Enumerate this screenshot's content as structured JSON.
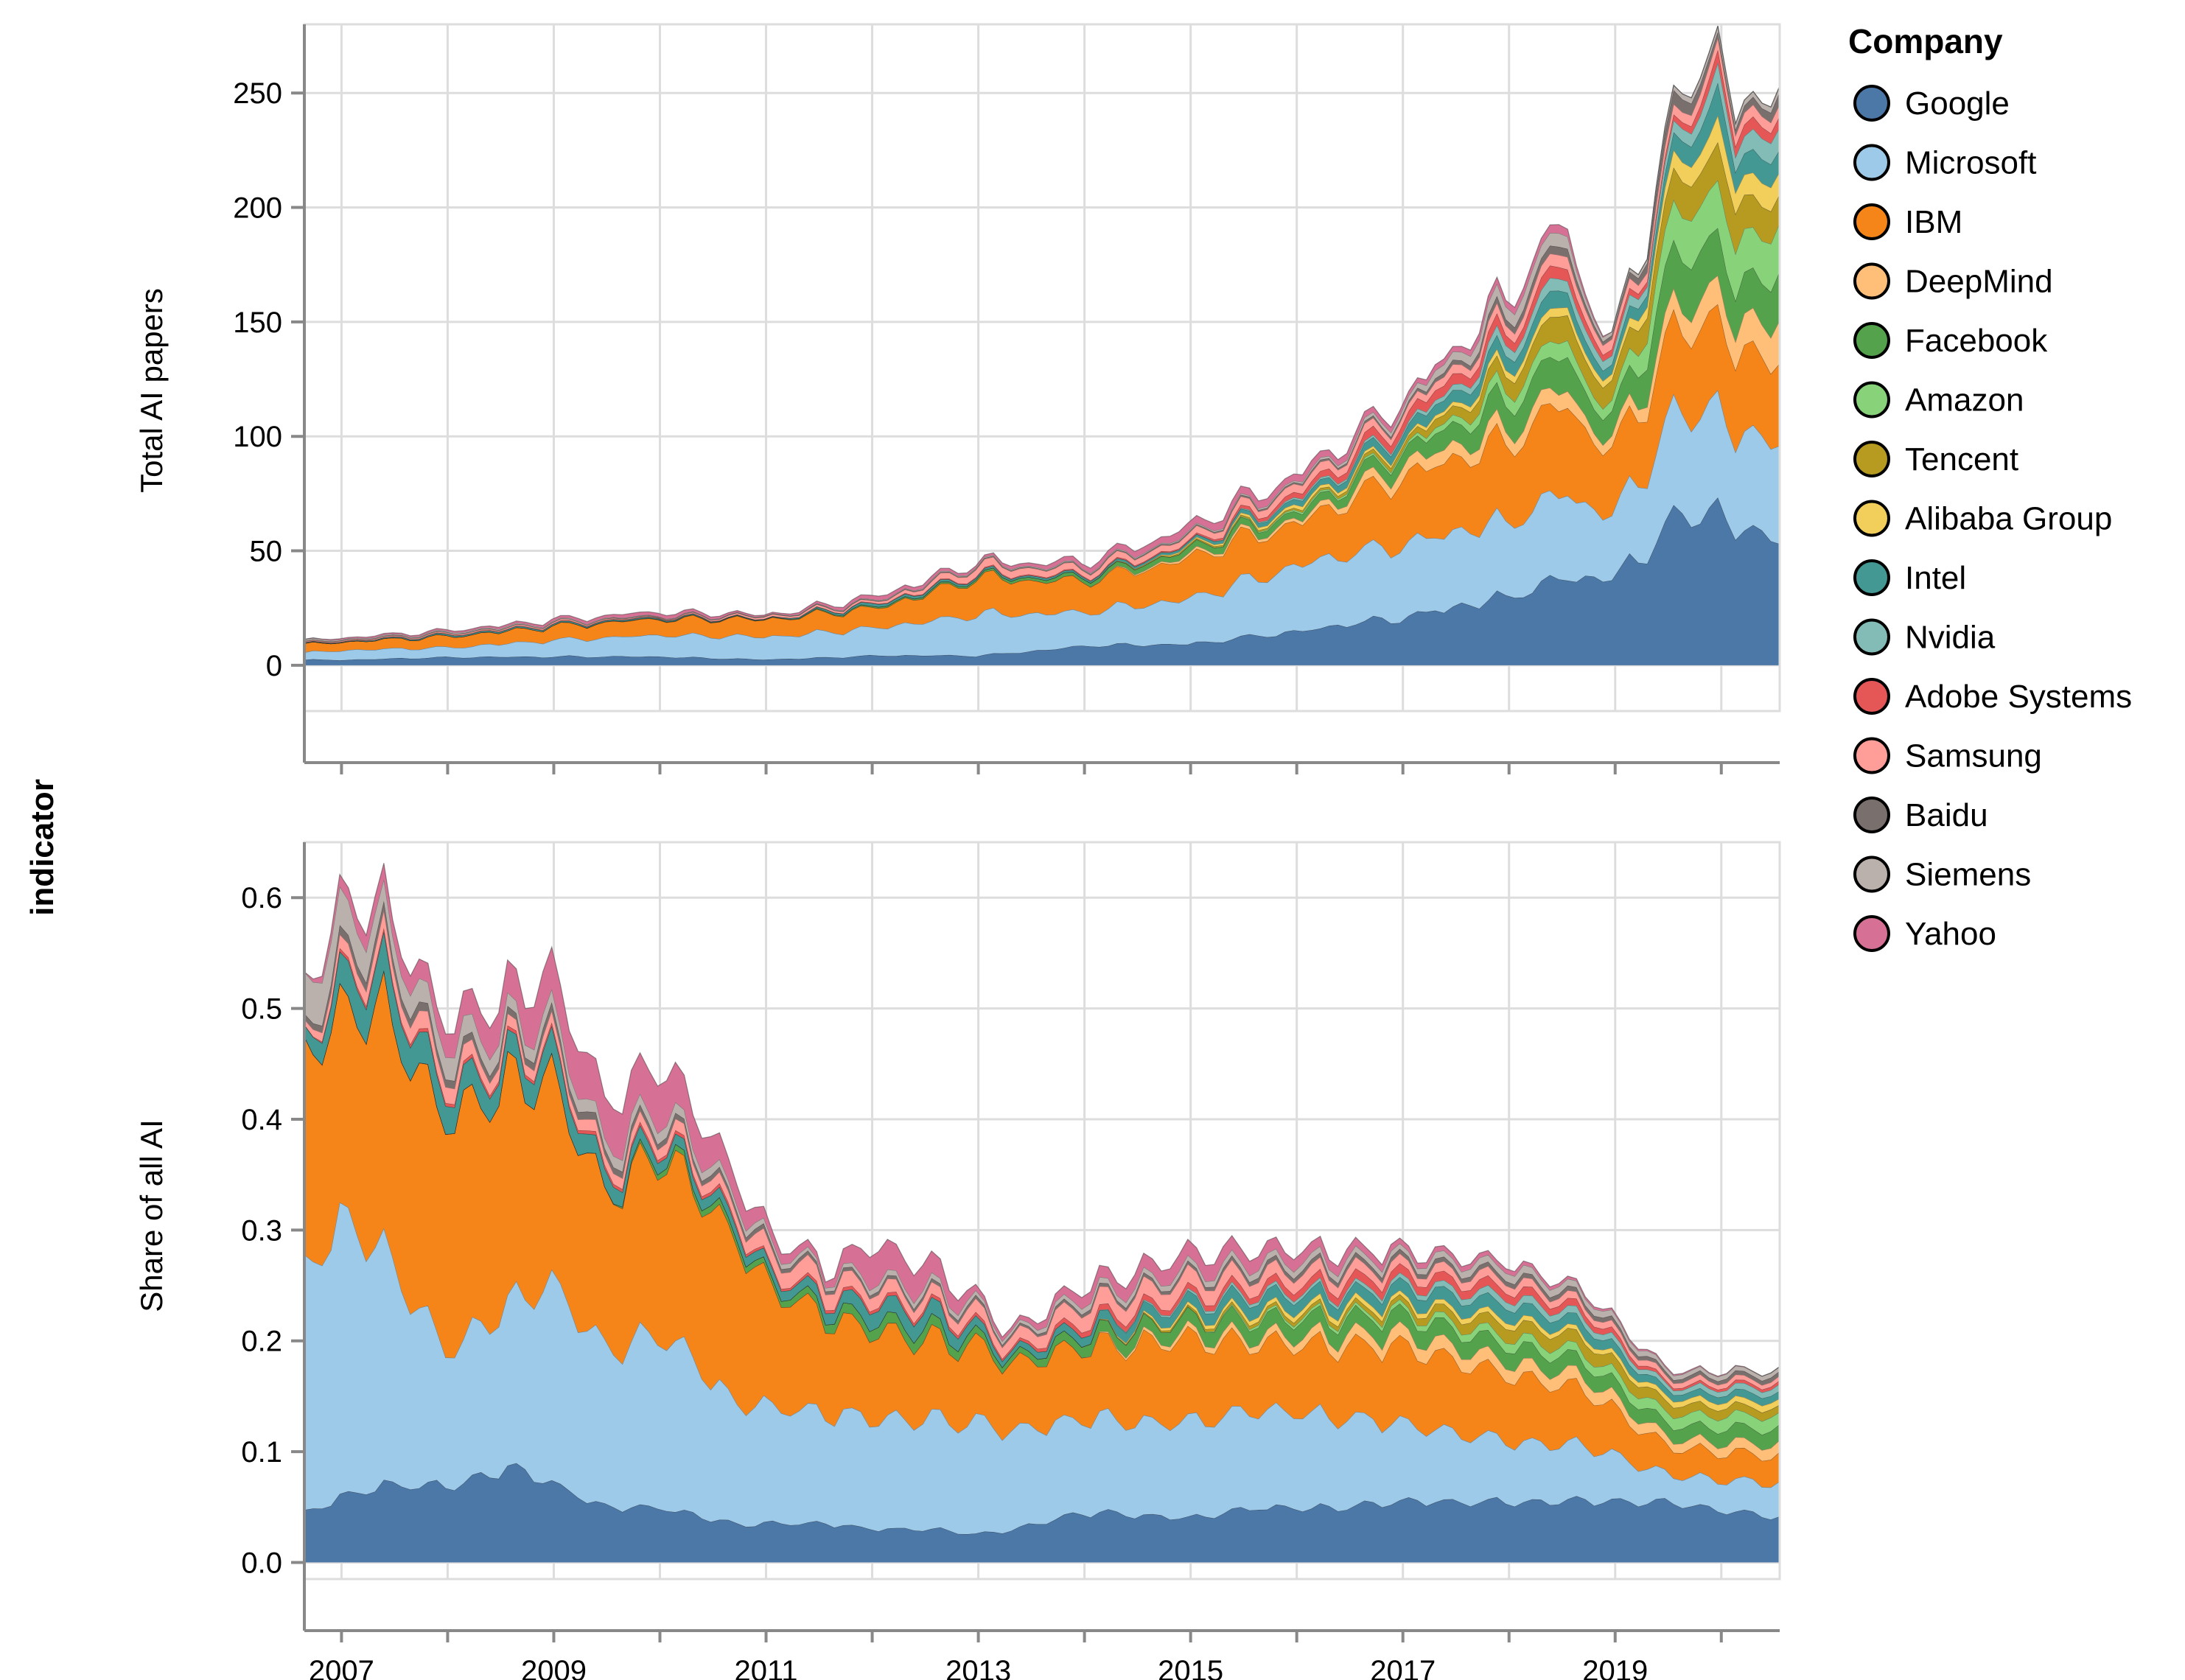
{
  "chart_data": {
    "type": "area",
    "stacked": true,
    "row_title": "indicator",
    "legend": {
      "title": "Company",
      "placement": "right",
      "items": [
        {
          "name": "Google",
          "color": "#4c78a8"
        },
        {
          "name": "Microsoft",
          "color": "#9ecae9"
        },
        {
          "name": "IBM",
          "color": "#f58518"
        },
        {
          "name": "DeepMind",
          "color": "#ffbf79"
        },
        {
          "name": "Facebook",
          "color": "#54a24b"
        },
        {
          "name": "Amazon",
          "color": "#88d27a"
        },
        {
          "name": "Tencent",
          "color": "#b79a20"
        },
        {
          "name": "Alibaba Group",
          "color": "#f2cf5b"
        },
        {
          "name": "Intel",
          "color": "#439894"
        },
        {
          "name": "Nvidia",
          "color": "#83bcb6"
        },
        {
          "name": "Adobe Systems",
          "color": "#e45756"
        },
        {
          "name": "Samsung",
          "color": "#ff9d98"
        },
        {
          "name": "Baidu",
          "color": "#79706e"
        },
        {
          "name": "Siemens",
          "color": "#bab0ac"
        },
        {
          "name": "Yahoo",
          "color": "#d67195"
        }
      ]
    },
    "x_axis": {
      "range": [
        2006.65,
        2020.55
      ],
      "ticks": [
        2007,
        2009,
        2011,
        2013,
        2015,
        2017,
        2019
      ],
      "tick_labels": [
        "2007",
        "2009",
        "2011",
        "2013",
        "2015",
        "2017",
        "2019"
      ]
    },
    "panels": [
      {
        "name": "total",
        "ylabel": "Total AI papers",
        "ylim": [
          -20,
          280
        ],
        "yticks": [
          0,
          50,
          100,
          150,
          200,
          250
        ],
        "ytick_labels": [
          "0",
          "50",
          "100",
          "150",
          "200",
          "250"
        ],
        "anchors": [
          {
            "year": 2006.65,
            "total": 11,
            "shares": [
              0.22,
              0.28,
              0.35,
              0,
              0,
              0,
              0,
              0,
              0.02,
              0,
              0.01,
              0.03,
              0.03,
              0.06,
              0
            ]
          },
          {
            "year": 2007.0,
            "total": 12,
            "shares": [
              0.2,
              0.35,
              0.3,
              0,
              0,
              0,
              0,
              0,
              0.02,
              0,
              0.01,
              0.03,
              0.02,
              0.03,
              0.04
            ]
          },
          {
            "year": 2008.0,
            "total": 15,
            "shares": [
              0.23,
              0.28,
              0.32,
              0,
              0,
              0,
              0,
              0,
              0.04,
              0,
              0.01,
              0.03,
              0.02,
              0.03,
              0.04
            ]
          },
          {
            "year": 2009.0,
            "total": 19,
            "shares": [
              0.2,
              0.38,
              0.32,
              0,
              0,
              0,
              0,
              0,
              0.03,
              0,
              0.01,
              0.03,
              0.01,
              0.02,
              0.05
            ]
          },
          {
            "year": 2010.0,
            "total": 22,
            "shares": [
              0.17,
              0.43,
              0.32,
              0,
              0.01,
              0,
              0,
              0,
              0.02,
              0,
              0.01,
              0.01,
              0.01,
              0.01,
              0.07
            ]
          },
          {
            "year": 2011.0,
            "total": 21,
            "shares": [
              0.12,
              0.47,
              0.36,
              0,
              0.01,
              0,
              0,
              0,
              0.01,
              0,
              0,
              0.04,
              0.01,
              0.01,
              0.02
            ]
          },
          {
            "year": 2012.0,
            "total": 28,
            "shares": [
              0.15,
              0.42,
              0.3,
              0,
              0.02,
              0,
              0,
              0,
              0.04,
              0,
              0.01,
              0.03,
              0.01,
              0.01,
              0.06
            ]
          },
          {
            "year": 2013.0,
            "total": 42,
            "shares": [
              0.1,
              0.43,
              0.38,
              0,
              0.02,
              0,
              0,
              0,
              0.02,
              0,
              0.01,
              0.08,
              0.01,
              0.01,
              0.02
            ]
          },
          {
            "year": 2014.0,
            "total": 42,
            "shares": [
              0.2,
              0.35,
              0.32,
              0,
              0.04,
              0,
              0,
              0,
              0.02,
              0,
              0.01,
              0.06,
              0.01,
              0.01,
              0.05
            ]
          },
          {
            "year": 2015.0,
            "total": 55,
            "shares": [
              0.17,
              0.36,
              0.32,
              0.02,
              0.05,
              0,
              0.01,
              0.01,
              0.02,
              0,
              0.01,
              0.05,
              0.01,
              0.01,
              0.06
            ]
          },
          {
            "year": 2016.0,
            "total": 75,
            "shares": [
              0.2,
              0.38,
              0.25,
              0.02,
              0.04,
              0.01,
              0.01,
              0.02,
              0.03,
              0.01,
              0.03,
              0.05,
              0.01,
              0.01,
              0.04
            ]
          },
          {
            "year": 2017.0,
            "total": 105,
            "shares": [
              0.2,
              0.3,
              0.28,
              0.05,
              0.06,
              0.01,
              0.02,
              0.01,
              0.04,
              0.01,
              0.04,
              0.03,
              0.01,
              0.02,
              0.02
            ]
          },
          {
            "year": 2018.0,
            "total": 150,
            "shares": [
              0.2,
              0.22,
              0.23,
              0.04,
              0.08,
              0.04,
              0.05,
              0.02,
              0.04,
              0.03,
              0.03,
              0.03,
              0.02,
              0.04,
              0.02
            ]
          },
          {
            "year": 2018.5,
            "total": 180,
            "shares": [
              0.21,
              0.21,
              0.22,
              0.04,
              0.08,
              0.04,
              0.06,
              0.02,
              0.04,
              0.03,
              0.03,
              0.03,
              0.02,
              0.03,
              0.02
            ]
          },
          {
            "year": 2018.95,
            "total": 135,
            "shares": [
              0.27,
              0.2,
              0.2,
              0.03,
              0.07,
              0.03,
              0.06,
              0.02,
              0.03,
              0.03,
              0.02,
              0.03,
              0.01,
              0.01,
              0
            ]
          },
          {
            "year": 2019.5,
            "total": 215,
            "shares": [
              0.28,
              0.2,
              0.16,
              0.04,
              0.1,
              0.08,
              0.06,
              0.03,
              0.03,
              0.02,
              0.01,
              0.02,
              0.03,
              0.01,
              0
            ]
          },
          {
            "year": 2019.95,
            "total": 278,
            "shares": [
              0.25,
              0.17,
              0.14,
              0.05,
              0.08,
              0.08,
              0.06,
              0.04,
              0.05,
              0.03,
              0.02,
              0.02,
              0.01,
              0.01,
              0
            ]
          },
          {
            "year": 2020.15,
            "total": 230,
            "shares": [
              0.25,
              0.17,
              0.15,
              0.05,
              0.07,
              0.08,
              0.07,
              0.04,
              0.04,
              0.03,
              0.02,
              0.02,
              0.01,
              0.01,
              0
            ]
          },
          {
            "year": 2020.55,
            "total": 262,
            "shares": [
              0.22,
              0.17,
              0.14,
              0.07,
              0.08,
              0.08,
              0.05,
              0.04,
              0.04,
              0.04,
              0.02,
              0.02,
              0.02,
              0.01,
              0
            ]
          }
        ]
      },
      {
        "name": "share",
        "ylabel": "Share of all AI",
        "ylim": [
          -0.015,
          0.65
        ],
        "yticks": [
          0.0,
          0.1,
          0.2,
          0.3,
          0.4,
          0.5,
          0.6
        ],
        "ytick_labels": [
          "0.0",
          "0.1",
          "0.2",
          "0.3",
          "0.4",
          "0.5",
          "0.6"
        ],
        "anchors": [
          {
            "year": 2006.65,
            "values": [
              0.045,
              0.215,
              0.195,
              0,
              0,
              0,
              0,
              0,
              0.01,
              0,
              0,
              0.005,
              0.005,
              0.04,
              0
            ]
          },
          {
            "year": 2007.0,
            "values": [
              0.06,
              0.25,
              0.19,
              0,
              0,
              0,
              0,
              0,
              0.03,
              0,
              0.003,
              0.012,
              0.008,
              0.035,
              0.012
            ]
          },
          {
            "year": 2007.4,
            "values": [
              0.07,
              0.21,
              0.22,
              0,
              0,
              0,
              0,
              0,
              0.035,
              0,
              0.003,
              0.015,
              0.008,
              0.02,
              0.015
            ]
          },
          {
            "year": 2008.0,
            "values": [
              0.07,
              0.12,
              0.21,
              0,
              0,
              0,
              0,
              0,
              0.025,
              0,
              0.003,
              0.015,
              0.007,
              0.02,
              0.02
            ]
          },
          {
            "year": 2008.6,
            "values": [
              0.085,
              0.15,
              0.2,
              0,
              0,
              0,
              0,
              0,
              0.02,
              0,
              0.003,
              0.01,
              0.006,
              0.012,
              0.03
            ]
          },
          {
            "year": 2009.0,
            "values": [
              0.07,
              0.18,
              0.18,
              0,
              0,
              0,
              0,
              0,
              0.025,
              0,
              0.003,
              0.01,
              0.007,
              0.012,
              0.04
            ]
          },
          {
            "year": 2009.5,
            "values": [
              0.05,
              0.14,
              0.14,
              0,
              0,
              0,
              0,
              0,
              0.015,
              0,
              0.003,
              0.01,
              0.006,
              0.01,
              0.04
            ]
          },
          {
            "year": 2010.0,
            "values": [
              0.05,
              0.16,
              0.16,
              0,
              0.005,
              0,
              0,
              0,
              0.01,
              0,
              0.003,
              0.01,
              0.005,
              0.01,
              0.04
            ]
          },
          {
            "year": 2010.7,
            "values": [
              0.035,
              0.11,
              0.15,
              0,
              0.006,
              0,
              0,
              0,
              0.01,
              0,
              0.003,
              0.01,
              0.004,
              0.006,
              0.02
            ]
          },
          {
            "year": 2011.0,
            "values": [
              0.035,
              0.105,
              0.11,
              0,
              0.005,
              0,
              0,
              0,
              0.008,
              0,
              0.002,
              0.015,
              0.004,
              0.005,
              0.01
            ]
          },
          {
            "year": 2011.6,
            "values": [
              0.035,
              0.1,
              0.085,
              0,
              0.008,
              0,
              0,
              0,
              0.01,
              0,
              0.003,
              0.015,
              0.003,
              0.003,
              0.005
            ]
          },
          {
            "year": 2012.0,
            "values": [
              0.03,
              0.1,
              0.08,
              0,
              0.01,
              0,
              0,
              0,
              0.015,
              0,
              0.003,
              0.012,
              0.003,
              0.005,
              0.03
            ]
          },
          {
            "year": 2012.6,
            "values": [
              0.03,
              0.1,
              0.07,
              0,
              0.01,
              0,
              0,
              0,
              0.015,
              0,
              0.003,
              0.01,
              0.003,
              0.005,
              0.02
            ]
          },
          {
            "year": 2013.0,
            "values": [
              0.025,
              0.1,
              0.07,
              0,
              0.007,
              0,
              0,
              0,
              0.008,
              0,
              0.003,
              0.012,
              0.003,
              0.004,
              0.005
            ]
          },
          {
            "year": 2013.3,
            "values": [
              0.03,
              0.09,
              0.06,
              0,
              0.005,
              0,
              0,
              0,
              0.005,
              0,
              0.002,
              0.01,
              0.002,
              0.003,
              0.003
            ]
          },
          {
            "year": 2014.0,
            "values": [
              0.045,
              0.085,
              0.065,
              0,
              0.01,
              0,
              0,
              0,
              0.008,
              0,
              0.005,
              0.015,
              0.003,
              0.005,
              0.01
            ]
          },
          {
            "year": 2015.0,
            "values": [
              0.04,
              0.085,
              0.075,
              0.005,
              0.013,
              0,
              0.002,
              0.003,
              0.01,
              0.002,
              0.005,
              0.015,
              0.003,
              0.005,
              0.015
            ]
          },
          {
            "year": 2015.6,
            "values": [
              0.05,
              0.09,
              0.06,
              0.006,
              0.015,
              0.002,
              0.003,
              0.004,
              0.012,
              0.003,
              0.006,
              0.012,
              0.004,
              0.006,
              0.012
            ]
          },
          {
            "year": 2016.5,
            "values": [
              0.05,
              0.08,
              0.065,
              0.01,
              0.015,
              0.003,
              0.004,
              0.005,
              0.01,
              0.003,
              0.008,
              0.01,
              0.004,
              0.006,
              0.008
            ]
          },
          {
            "year": 2017.0,
            "values": [
              0.055,
              0.07,
              0.07,
              0.012,
              0.016,
              0.004,
              0.005,
              0.004,
              0.012,
              0.004,
              0.008,
              0.008,
              0.004,
              0.005,
              0.005
            ]
          },
          {
            "year": 2018.0,
            "values": [
              0.055,
              0.055,
              0.06,
              0.012,
              0.015,
              0.008,
              0.012,
              0.005,
              0.012,
              0.007,
              0.008,
              0.008,
              0.004,
              0.007,
              0.004
            ]
          },
          {
            "year": 2018.7,
            "values": [
              0.055,
              0.05,
              0.05,
              0.012,
              0.014,
              0.008,
              0.012,
              0.004,
              0.01,
              0.006,
              0.006,
              0.006,
              0.004,
              0.006,
              0.002
            ]
          },
          {
            "year": 2019.5,
            "values": [
              0.055,
              0.025,
              0.025,
              0.008,
              0.012,
              0.01,
              0.009,
              0.005,
              0.006,
              0.004,
              0.002,
              0.005,
              0.003,
              0.004,
              0.001
            ]
          },
          {
            "year": 2020.55,
            "values": [
              0.04,
              0.03,
              0.025,
              0.01,
              0.014,
              0.012,
              0.007,
              0.006,
              0.007,
              0.006,
              0.003,
              0.004,
              0.004,
              0.004,
              0
            ]
          }
        ]
      }
    ]
  }
}
